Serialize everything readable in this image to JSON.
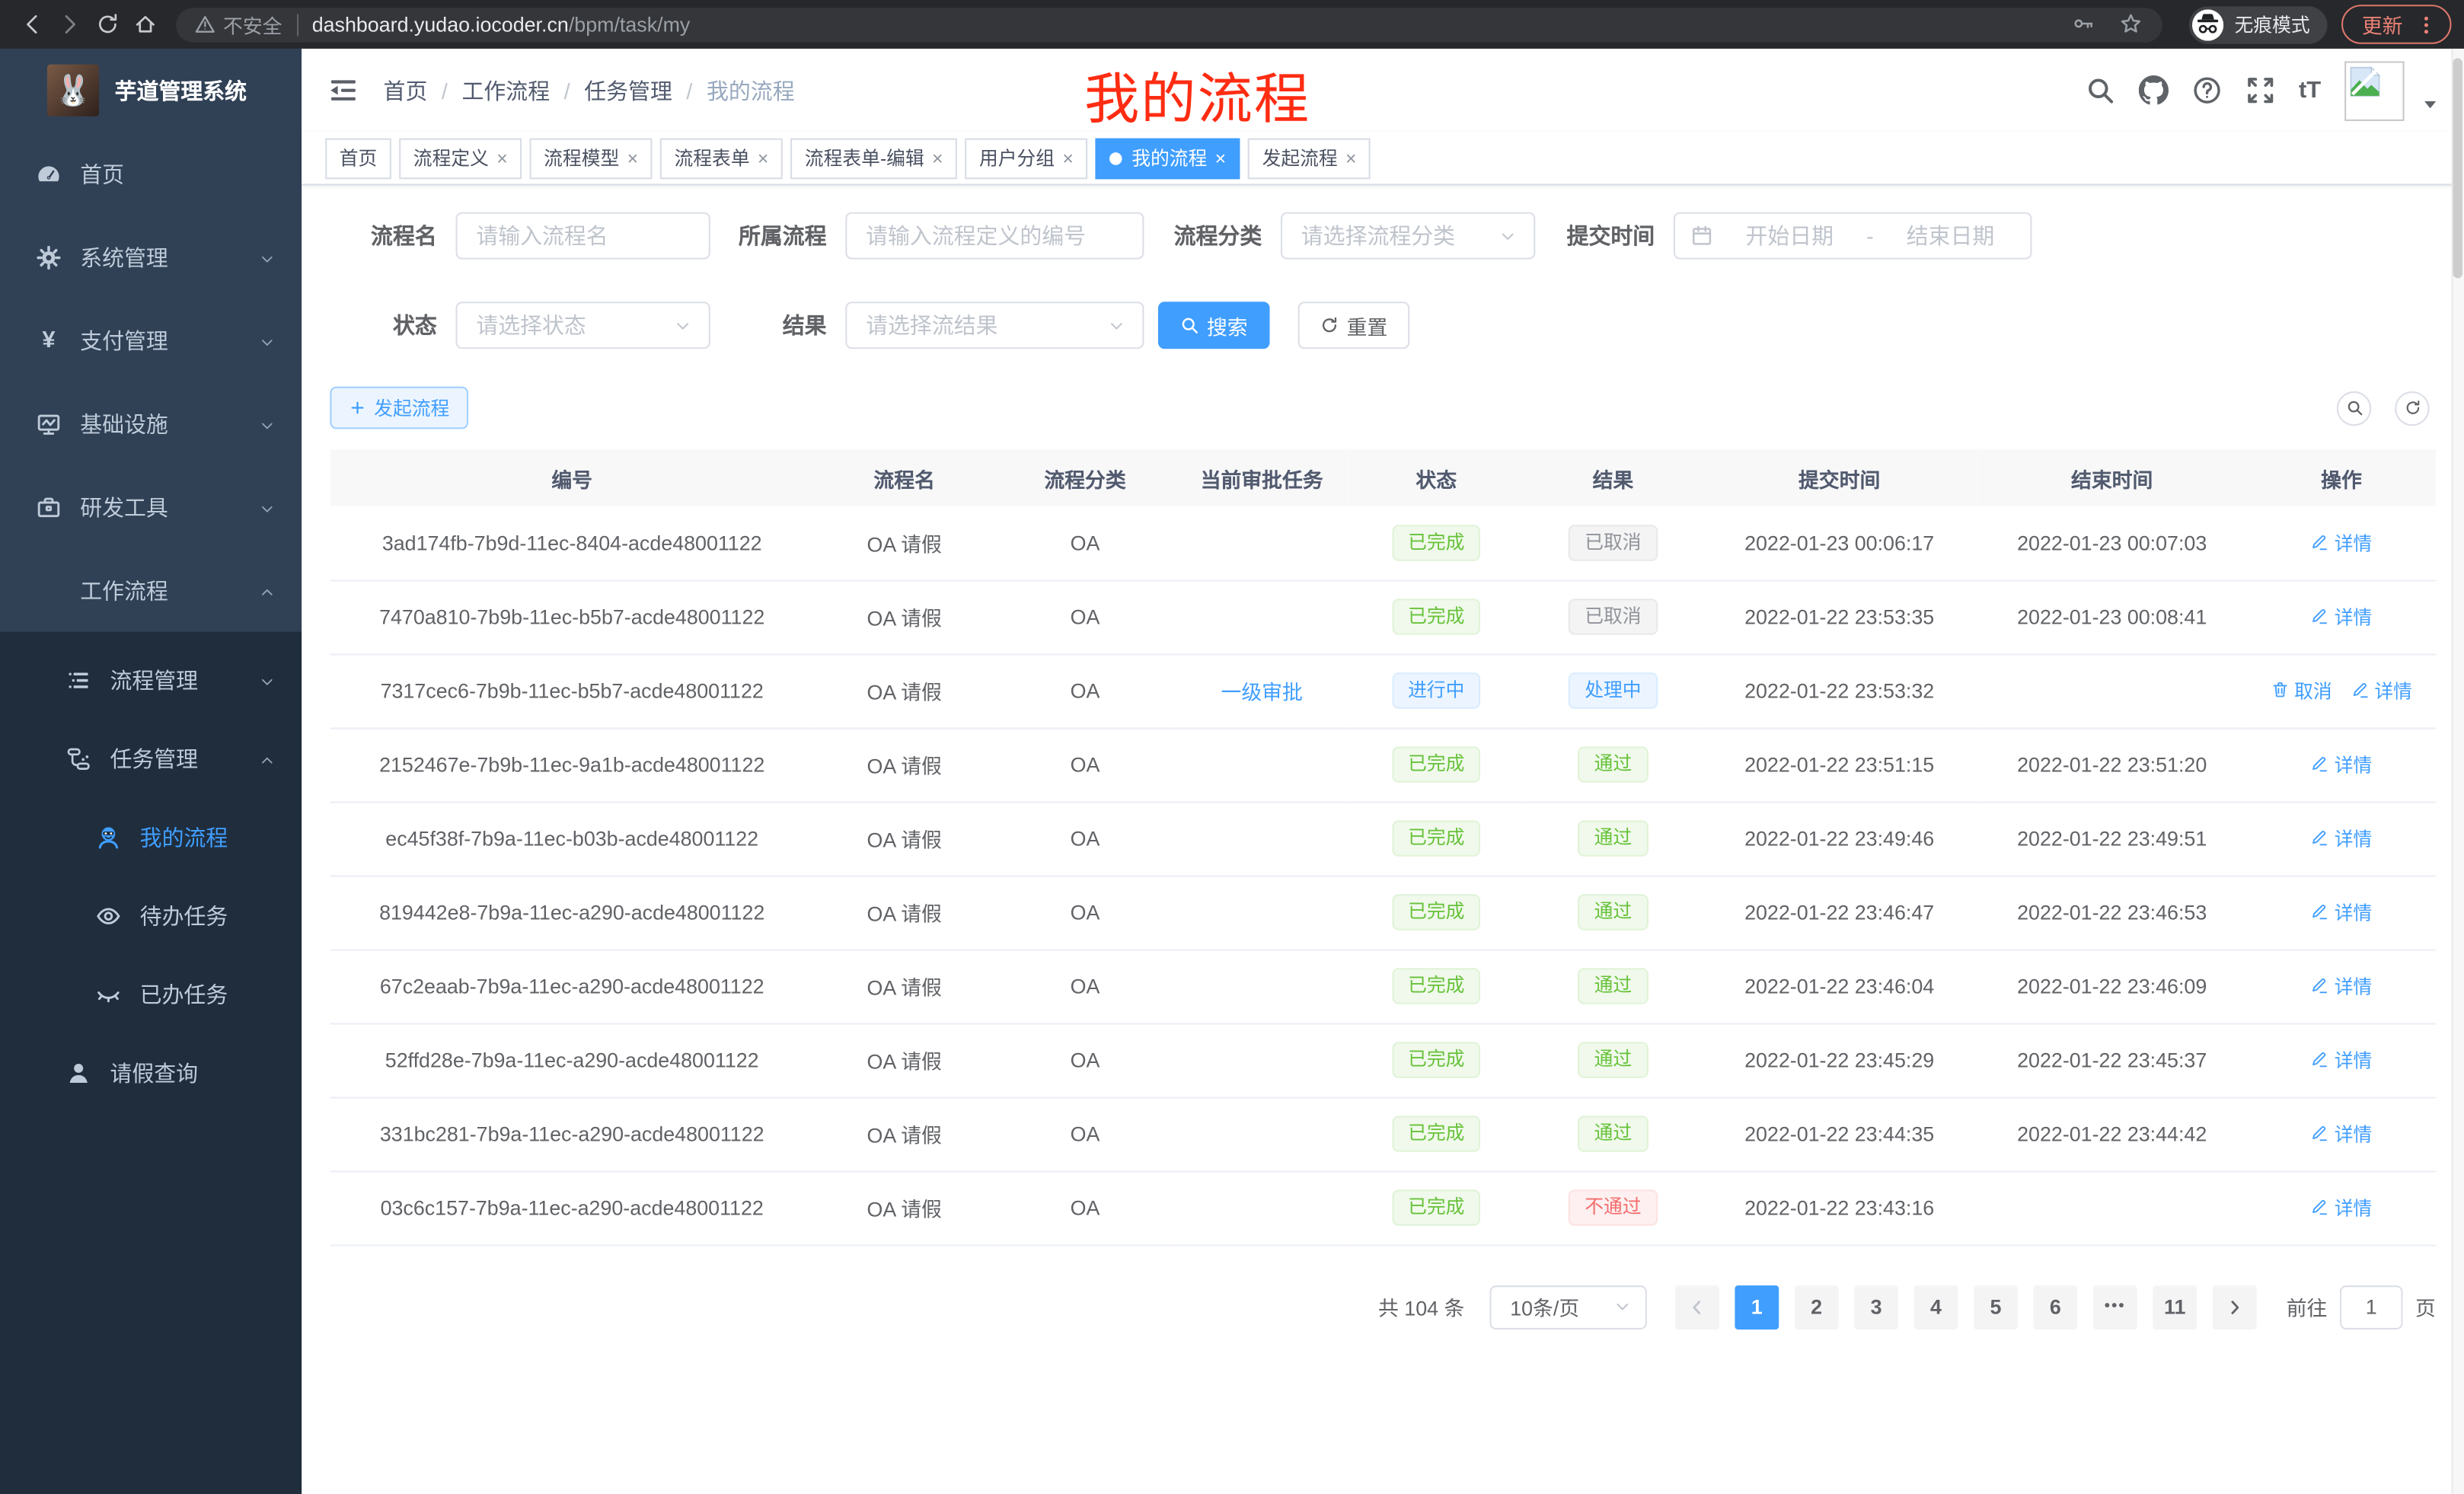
{
  "browser": {
    "security_warning": "不安全",
    "url_host": "dashboard.yudao.iocoder.cn",
    "url_path": "/bpm/task/my",
    "incognito_label": "无痕模式",
    "update_label": "更新"
  },
  "sidebar": {
    "title": "芋道管理系统",
    "items": [
      {
        "label": "首页",
        "icon": "dashboard",
        "level": 1,
        "chevron": "",
        "dark": false,
        "active": false
      },
      {
        "label": "系统管理",
        "icon": "gear",
        "level": 1,
        "chevron": "down",
        "dark": false,
        "active": false
      },
      {
        "label": "支付管理",
        "icon": "yen",
        "level": 1,
        "chevron": "down",
        "dark": false,
        "active": false
      },
      {
        "label": "基础设施",
        "icon": "monitor",
        "level": 1,
        "chevron": "down",
        "dark": false,
        "active": false
      },
      {
        "label": "研发工具",
        "icon": "briefcase",
        "level": 1,
        "chevron": "down",
        "dark": false,
        "active": false
      },
      {
        "label": "工作流程",
        "icon": "suitcase",
        "level": 1,
        "chevron": "up",
        "dark": false,
        "active": false
      },
      {
        "label": "流程管理",
        "icon": "list",
        "level": 2,
        "chevron": "down",
        "dark": true,
        "active": false
      },
      {
        "label": "任务管理",
        "icon": "tree",
        "level": 2,
        "chevron": "up",
        "dark": true,
        "active": false
      },
      {
        "label": "我的流程",
        "icon": "robot",
        "level": 3,
        "chevron": "",
        "dark": true,
        "active": true
      },
      {
        "label": "待办任务",
        "icon": "eye",
        "level": 3,
        "chevron": "",
        "dark": true,
        "active": false
      },
      {
        "label": "已办任务",
        "icon": "eyeclosed",
        "level": 3,
        "chevron": "",
        "dark": true,
        "active": false
      },
      {
        "label": "请假查询",
        "icon": "user",
        "level": 2,
        "chevron": "",
        "dark": true,
        "active": false
      }
    ]
  },
  "breadcrumb": {
    "items": [
      "首页",
      "工作流程",
      "任务管理",
      "我的流程"
    ],
    "separator": "/"
  },
  "annotation": {
    "text": "我的流程",
    "color": "#fe2c12"
  },
  "tabs": [
    {
      "label": "首页",
      "closable": false,
      "active": false
    },
    {
      "label": "流程定义",
      "closable": true,
      "active": false
    },
    {
      "label": "流程模型",
      "closable": true,
      "active": false
    },
    {
      "label": "流程表单",
      "closable": true,
      "active": false
    },
    {
      "label": "流程表单-编辑",
      "closable": true,
      "active": false
    },
    {
      "label": "用户分组",
      "closable": true,
      "active": false
    },
    {
      "label": "我的流程",
      "closable": true,
      "active": true
    },
    {
      "label": "发起流程",
      "closable": true,
      "active": false
    }
  ],
  "filters": {
    "name_label": "流程名",
    "name_placeholder": "请输入流程名",
    "process_label": "所属流程",
    "process_placeholder": "请输入流程定义的编号",
    "category_label": "流程分类",
    "category_placeholder": "请选择流程分类",
    "time_label": "提交时间",
    "date_start": "开始日期",
    "date_separator": "-",
    "date_end": "结束日期",
    "status_label": "状态",
    "status_placeholder": "请选择状态",
    "result_label": "结果",
    "result_placeholder": "请选择流结果",
    "search_button": "搜索",
    "reset_button": "重置"
  },
  "toolbar": {
    "create_button": "发起流程"
  },
  "table": {
    "columns": [
      "编号",
      "流程名",
      "流程分类",
      "当前审批任务",
      "状态",
      "结果",
      "提交时间",
      "结束时间",
      "操作"
    ],
    "rows": [
      {
        "id": "3ad174fb-7b9d-11ec-8404-acde48001122",
        "name": "OA 请假",
        "category": "OA",
        "task": "",
        "status": {
          "text": "已完成",
          "type": "success"
        },
        "result": {
          "text": "已取消",
          "type": "info"
        },
        "submit": "2022-01-23 00:06:17",
        "end": "2022-01-23 00:07:03",
        "actions": [
          {
            "label": "详情",
            "icon": "edit"
          }
        ]
      },
      {
        "id": "7470a810-7b9b-11ec-b5b7-acde48001122",
        "name": "OA 请假",
        "category": "OA",
        "task": "",
        "status": {
          "text": "已完成",
          "type": "success"
        },
        "result": {
          "text": "已取消",
          "type": "info"
        },
        "submit": "2022-01-22 23:53:35",
        "end": "2022-01-23 00:08:41",
        "actions": [
          {
            "label": "详情",
            "icon": "edit"
          }
        ]
      },
      {
        "id": "7317cec6-7b9b-11ec-b5b7-acde48001122",
        "name": "OA 请假",
        "category": "OA",
        "task": "一级审批",
        "status": {
          "text": "进行中",
          "type": "primary"
        },
        "result": {
          "text": "处理中",
          "type": "primary"
        },
        "submit": "2022-01-22 23:53:32",
        "end": "",
        "actions": [
          {
            "label": "取消",
            "icon": "trash"
          },
          {
            "label": "详情",
            "icon": "edit"
          }
        ]
      },
      {
        "id": "2152467e-7b9b-11ec-9a1b-acde48001122",
        "name": "OA 请假",
        "category": "OA",
        "task": "",
        "status": {
          "text": "已完成",
          "type": "success"
        },
        "result": {
          "text": "通过",
          "type": "success"
        },
        "submit": "2022-01-22 23:51:15",
        "end": "2022-01-22 23:51:20",
        "actions": [
          {
            "label": "详情",
            "icon": "edit"
          }
        ]
      },
      {
        "id": "ec45f38f-7b9a-11ec-b03b-acde48001122",
        "name": "OA 请假",
        "category": "OA",
        "task": "",
        "status": {
          "text": "已完成",
          "type": "success"
        },
        "result": {
          "text": "通过",
          "type": "success"
        },
        "submit": "2022-01-22 23:49:46",
        "end": "2022-01-22 23:49:51",
        "actions": [
          {
            "label": "详情",
            "icon": "edit"
          }
        ]
      },
      {
        "id": "819442e8-7b9a-11ec-a290-acde48001122",
        "name": "OA 请假",
        "category": "OA",
        "task": "",
        "status": {
          "text": "已完成",
          "type": "success"
        },
        "result": {
          "text": "通过",
          "type": "success"
        },
        "submit": "2022-01-22 23:46:47",
        "end": "2022-01-22 23:46:53",
        "actions": [
          {
            "label": "详情",
            "icon": "edit"
          }
        ]
      },
      {
        "id": "67c2eaab-7b9a-11ec-a290-acde48001122",
        "name": "OA 请假",
        "category": "OA",
        "task": "",
        "status": {
          "text": "已完成",
          "type": "success"
        },
        "result": {
          "text": "通过",
          "type": "success"
        },
        "submit": "2022-01-22 23:46:04",
        "end": "2022-01-22 23:46:09",
        "actions": [
          {
            "label": "详情",
            "icon": "edit"
          }
        ]
      },
      {
        "id": "52ffd28e-7b9a-11ec-a290-acde48001122",
        "name": "OA 请假",
        "category": "OA",
        "task": "",
        "status": {
          "text": "已完成",
          "type": "success"
        },
        "result": {
          "text": "通过",
          "type": "success"
        },
        "submit": "2022-01-22 23:45:29",
        "end": "2022-01-22 23:45:37",
        "actions": [
          {
            "label": "详情",
            "icon": "edit"
          }
        ]
      },
      {
        "id": "331bc281-7b9a-11ec-a290-acde48001122",
        "name": "OA 请假",
        "category": "OA",
        "task": "",
        "status": {
          "text": "已完成",
          "type": "success"
        },
        "result": {
          "text": "通过",
          "type": "success"
        },
        "submit": "2022-01-22 23:44:35",
        "end": "2022-01-22 23:44:42",
        "actions": [
          {
            "label": "详情",
            "icon": "edit"
          }
        ]
      },
      {
        "id": "03c6c157-7b9a-11ec-a290-acde48001122",
        "name": "OA 请假",
        "category": "OA",
        "task": "",
        "status": {
          "text": "已完成",
          "type": "success"
        },
        "result": {
          "text": "不通过",
          "type": "danger"
        },
        "submit": "2022-01-22 23:43:16",
        "end": "",
        "actions": [
          {
            "label": "详情",
            "icon": "edit"
          }
        ]
      }
    ]
  },
  "pagination": {
    "total": "共 104 条",
    "page_size": "10条/页",
    "pages": [
      "1",
      "2",
      "3",
      "4",
      "5",
      "6",
      "•••",
      "11"
    ],
    "active_page": "1",
    "goto_label": "前往",
    "goto_value": "1",
    "goto_unit": "页"
  },
  "colors": {
    "accent": "#409eff",
    "sidebar_bg": "#304156",
    "submenu_bg": "#1f2d3d",
    "success": "#67c23a",
    "danger": "#f56c6c",
    "info": "#909399",
    "annotation_red": "#fe2c12"
  }
}
